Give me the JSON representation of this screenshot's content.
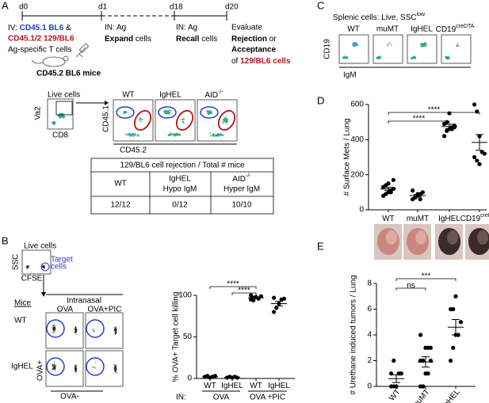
{
  "panel_labels": [
    "A",
    "B",
    "C",
    "D",
    "E"
  ],
  "panel_a": {
    "days": [
      "d0",
      "d1",
      "d18",
      "d20"
    ],
    "injection": [
      "IV: ",
      "CD45.1 BL6",
      " &"
    ],
    "injection_2": "CD45.1/2 129/BL6",
    "injection_3": "Ag-specific T cells",
    "host": "CD45.2 BL6 mice",
    "d1_step": [
      "IN: Ag",
      "Expand",
      " cells"
    ],
    "d18_step": [
      "IN: Ag",
      "Recall",
      " cells"
    ],
    "d20_step": [
      "Evaluate",
      "Rejection",
      " or",
      "Acceptance",
      "of ",
      "129/BL6 cells"
    ],
    "gating": {
      "title": "Live cells",
      "y_axis": "Va2",
      "x_axis": "CD8"
    },
    "plot_titles": [
      "WT",
      "IgHEL",
      "AID"
    ],
    "aid_sup": "-/-",
    "y_axis": "CD45.1",
    "x_axis": "CD45.2",
    "table": {
      "header": "129/BL6 cell rejection / Total # mice",
      "labels": [
        "WT",
        "IgHEL",
        "Hypo IgM",
        "AID",
        "-/-",
        "Hyper IgM"
      ],
      "counts": [
        "12/12",
        "0/12",
        "10/10"
      ]
    }
  },
  "panel_b": {
    "gating": {
      "title": "Live cells",
      "y_axis": "SSC",
      "x_axis": "CFSE",
      "gate": [
        "Target",
        "cells"
      ]
    },
    "route": "Intranasal",
    "mice": "Mice",
    "columns": [
      "OVA",
      "OVA+PIC"
    ],
    "rows": [
      "WT",
      "IgHEL"
    ],
    "y_axis": "OVA+",
    "x_axis": "OVA-"
  },
  "panel_c": {
    "title": [
      "Splenic cells: Live, SSC",
      "low"
    ],
    "plots": [
      "WT",
      "muMT",
      "IgHEL",
      "CD19"
    ],
    "plot_sup": "creDTA",
    "y_axis": "CD19",
    "x_axis": "IgM"
  },
  "chart_data": [
    {
      "type": "dot",
      "y_label": "# Surface Mets / Lung",
      "categories": [
        "WT",
        "muMT",
        "IgHEL",
        "CD19"
      ],
      "category_sup": {
        "3": "creDTA"
      },
      "values": [
        [
          80,
          90,
          100,
          110,
          120,
          130,
          140,
          150,
          100,
          170
        ],
        [
          60,
          70,
          80,
          90,
          100,
          110,
          70,
          90,
          60
        ],
        [
          420,
          450,
          460,
          470,
          480,
          490,
          500,
          550,
          460,
          470
        ],
        [
          600,
          560,
          420,
          330,
          320,
          300,
          280,
          260
        ]
      ],
      "means": [
        119,
        81,
        475,
        384
      ],
      "sems": [
        9,
        6,
        12,
        45
      ],
      "ylim": [
        0,
        600
      ],
      "yticks": [
        0,
        200,
        400,
        600
      ],
      "annotations": [
        "****",
        "****"
      ],
      "color": "#000000"
    },
    {
      "type": "dot",
      "y_label": "# Urethane induced tumors / Lung",
      "categories": [
        "WT",
        "muMT",
        "IgHEL"
      ],
      "values": [
        [
          0,
          0,
          0,
          1,
          1,
          1,
          2,
          0
        ],
        [
          0,
          0,
          1,
          1,
          2,
          2,
          2,
          3,
          3,
          3,
          4
        ],
        [
          2,
          3,
          4,
          4,
          5,
          6,
          6,
          7
        ]
      ],
      "means": [
        0.6,
        1.9,
        4.6
      ],
      "sems": [
        0.3,
        0.4,
        0.6
      ],
      "ylim": [
        0,
        8
      ],
      "yticks": [
        0,
        2,
        4,
        6,
        8
      ],
      "annotations": [
        "ns",
        "***"
      ],
      "color": "#000000"
    },
    {
      "type": "dot",
      "y_label": "% OVA+ Target cell killing",
      "categories": [
        "WT",
        "IgHEL",
        "WT",
        "IgHEL"
      ],
      "group_title": "IN:",
      "groups": [
        "OVA",
        "OVA +PIC"
      ],
      "values": [
        [
          2,
          3,
          1,
          2,
          3
        ],
        [
          1,
          2,
          1,
          2,
          1
        ],
        [
          95,
          97,
          98,
          96,
          99,
          100,
          94
        ],
        [
          80,
          85,
          90,
          95,
          96,
          97
        ]
      ],
      "means": [
        2,
        1.4,
        97,
        90
      ],
      "sems": [
        0.4,
        0.2,
        0.8,
        2.7
      ],
      "ylim": [
        0,
        100
      ],
      "yticks": [
        0,
        50,
        100
      ],
      "annotations": [
        "****",
        "****"
      ],
      "color": "#000000"
    }
  ]
}
